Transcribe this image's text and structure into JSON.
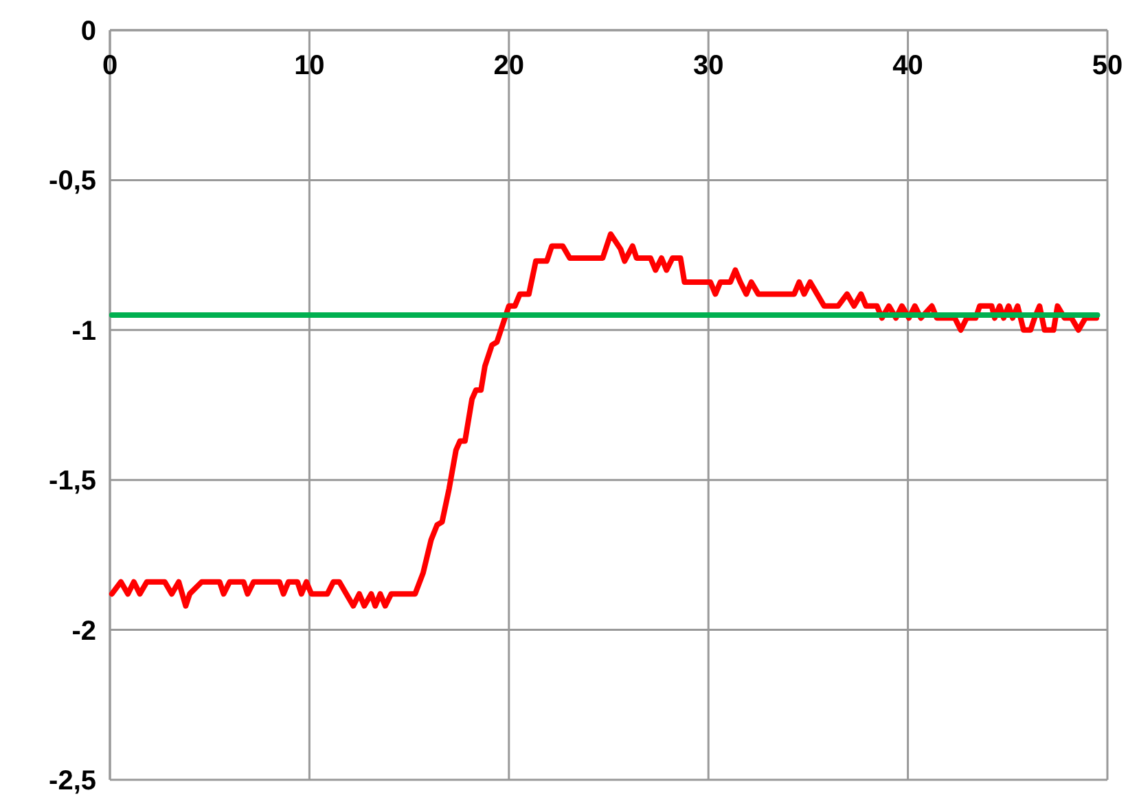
{
  "chart_data": {
    "type": "line",
    "xlim": [
      0,
      50
    ],
    "xticks": [
      0,
      10,
      20,
      30,
      40,
      50
    ],
    "ylim": [
      -2.5,
      0
    ],
    "yticks": [
      {
        "value": 0,
        "label": "0"
      },
      {
        "value": -0.5,
        "label": "-0,5"
      },
      {
        "value": -1,
        "label": "-1"
      },
      {
        "value": -1.5,
        "label": "-1,5"
      },
      {
        "value": -2,
        "label": "-2"
      },
      {
        "value": -2.5,
        "label": "-2,5"
      }
    ],
    "grid": true,
    "marker": "none",
    "line_style": "solid",
    "series": [
      {
        "color": "#ff0000",
        "x": [
          0.1,
          0.55,
          0.9,
          1.2,
          1.5,
          1.85,
          2.75,
          3.1,
          3.45,
          3.8,
          4.0,
          4.6,
          5.5,
          5.7,
          6.0,
          6.7,
          6.9,
          7.2,
          8.5,
          8.7,
          8.95,
          9.4,
          9.6,
          9.85,
          10.1,
          10.9,
          11.2,
          11.5,
          11.85,
          12.2,
          12.5,
          12.75,
          13.1,
          13.3,
          13.55,
          13.8,
          14.1,
          15.3,
          15.7,
          16.1,
          16.4,
          16.65,
          17.0,
          17.35,
          17.55,
          17.8,
          18.15,
          18.35,
          18.6,
          18.8,
          19.15,
          19.4,
          20.0,
          20.3,
          20.55,
          21.0,
          21.35,
          21.9,
          22.15,
          22.7,
          23.05,
          24.7,
          25.1,
          25.6,
          25.8,
          26.2,
          26.4,
          27.1,
          27.35,
          27.65,
          27.9,
          28.2,
          28.6,
          28.8,
          30.1,
          30.35,
          30.6,
          31.1,
          31.35,
          31.6,
          31.9,
          32.15,
          32.5,
          34.3,
          34.55,
          34.8,
          35.1,
          35.45,
          35.8,
          36.15,
          36.5,
          36.95,
          37.3,
          37.65,
          37.9,
          38.45,
          38.7,
          39.05,
          39.4,
          39.7,
          40.05,
          40.35,
          40.65,
          41.2,
          41.45,
          42.35,
          42.65,
          42.95,
          43.4,
          43.6,
          44.2,
          44.35,
          44.6,
          44.8,
          45.05,
          45.25,
          45.5,
          45.8,
          46.15,
          46.35,
          46.6,
          46.85,
          47.3,
          47.5,
          47.85,
          48.2,
          48.55,
          48.9,
          49.45
        ],
        "values": [
          -1.88,
          -1.84,
          -1.88,
          -1.84,
          -1.88,
          -1.84,
          -1.84,
          -1.88,
          -1.84,
          -1.92,
          -1.88,
          -1.84,
          -1.84,
          -1.88,
          -1.84,
          -1.84,
          -1.88,
          -1.84,
          -1.84,
          -1.88,
          -1.84,
          -1.84,
          -1.88,
          -1.84,
          -1.88,
          -1.88,
          -1.84,
          -1.84,
          -1.88,
          -1.92,
          -1.88,
          -1.92,
          -1.88,
          -1.92,
          -1.88,
          -1.92,
          -1.88,
          -1.88,
          -1.81,
          -1.7,
          -1.65,
          -1.64,
          -1.53,
          -1.4,
          -1.37,
          -1.37,
          -1.23,
          -1.2,
          -1.2,
          -1.12,
          -1.05,
          -1.04,
          -0.92,
          -0.92,
          -0.88,
          -0.88,
          -0.77,
          -0.77,
          -0.72,
          -0.72,
          -0.76,
          -0.76,
          -0.68,
          -0.73,
          -0.77,
          -0.72,
          -0.76,
          -0.76,
          -0.8,
          -0.76,
          -0.8,
          -0.76,
          -0.76,
          -0.84,
          -0.84,
          -0.88,
          -0.84,
          -0.84,
          -0.8,
          -0.84,
          -0.88,
          -0.84,
          -0.88,
          -0.88,
          -0.84,
          -0.88,
          -0.84,
          -0.88,
          -0.92,
          -0.92,
          -0.92,
          -0.88,
          -0.92,
          -0.88,
          -0.92,
          -0.92,
          -0.96,
          -0.92,
          -0.96,
          -0.92,
          -0.96,
          -0.92,
          -0.96,
          -0.92,
          -0.96,
          -0.96,
          -1.0,
          -0.96,
          -0.96,
          -0.92,
          -0.92,
          -0.96,
          -0.92,
          -0.96,
          -0.92,
          -0.96,
          -0.92,
          -1.0,
          -1.0,
          -0.96,
          -0.92,
          -1.0,
          -1.0,
          -0.92,
          -0.96,
          -0.96,
          -1.0,
          -0.96,
          -0.96
        ]
      },
      {
        "color": "#00b050",
        "x": [
          0.1,
          49.5
        ],
        "values": [
          -0.95,
          -0.95
        ]
      }
    ]
  }
}
